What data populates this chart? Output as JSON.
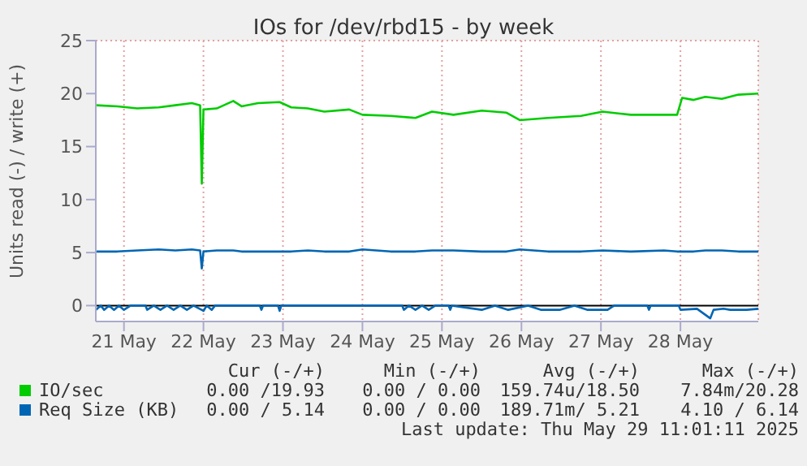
{
  "chart_data": {
    "type": "line",
    "title": "IOs for /dev/rbd15 - by week",
    "ylabel": "Units read (-) / write (+)",
    "x": [
      "2025-05-21T03:30",
      "2025-05-21T10:00",
      "2025-05-21T16:00",
      "2025-05-21T22:30",
      "2025-05-22T03:30",
      "2025-05-22T08:30",
      "2025-05-22T11:00",
      "2025-05-22T11:30",
      "2025-05-22T12:00",
      "2025-05-22T16:00",
      "2025-05-22T21:00",
      "2025-05-22T23:30",
      "2025-05-23T04:30",
      "2025-05-23T11:00",
      "2025-05-23T14:30",
      "2025-05-23T19:30",
      "2025-05-24T00:30",
      "2025-05-24T08:00",
      "2025-05-24T12:00",
      "2025-05-24T20:30",
      "2025-05-25T04:00",
      "2025-05-25T09:00",
      "2025-05-25T15:30",
      "2025-05-26T00:00",
      "2025-05-26T07:30",
      "2025-05-26T11:30",
      "2025-05-26T20:00",
      "2025-05-27T06:00",
      "2025-05-27T12:30",
      "2025-05-27T21:00",
      "2025-05-28T07:00",
      "2025-05-28T11:00",
      "2025-05-28T12:30",
      "2025-05-28T16:00",
      "2025-05-28T19:30",
      "2025-05-29T00:30",
      "2025-05-29T05:30",
      "2025-05-29T11:30"
    ],
    "series": [
      {
        "name": "IO/sec",
        "color": "#00cc00",
        "values": [
          18.9,
          18.8,
          18.6,
          18.7,
          18.9,
          19.1,
          18.9,
          11.5,
          18.5,
          18.6,
          19.3,
          18.8,
          19.1,
          19.2,
          18.7,
          18.6,
          18.3,
          18.5,
          18.0,
          17.9,
          17.7,
          18.3,
          18.0,
          18.4,
          18.2,
          17.5,
          17.7,
          17.9,
          18.3,
          18.0,
          18.0,
          18.0,
          19.6,
          19.4,
          19.7,
          19.5,
          19.9,
          20.0
        ]
      },
      {
        "name": "Req Size (KB)",
        "color": "#0066b3",
        "values": [
          5.1,
          5.1,
          5.2,
          5.3,
          5.2,
          5.3,
          5.2,
          3.5,
          5.1,
          5.2,
          5.2,
          5.1,
          5.1,
          5.1,
          5.1,
          5.2,
          5.1,
          5.1,
          5.3,
          5.1,
          5.1,
          5.2,
          5.2,
          5.1,
          5.1,
          5.3,
          5.1,
          5.1,
          5.2,
          5.1,
          5.2,
          5.1,
          5.1,
          5.1,
          5.2,
          5.2,
          5.1,
          5.1
        ]
      },
      {
        "color": "#0066b3",
        "x": [
          "2025-05-21T03:30",
          "2025-05-21T05:00",
          "2025-05-21T06:00",
          "2025-05-21T07:30",
          "2025-05-21T09:00",
          "2025-05-21T10:30",
          "2025-05-21T12:00",
          "2025-05-21T14:00",
          "2025-05-21T18:30",
          "2025-05-21T19:00",
          "2025-05-21T21:00",
          "2025-05-21T23:00",
          "2025-05-22T01:00",
          "2025-05-22T03:00",
          "2025-05-22T05:00",
          "2025-05-22T07:00",
          "2025-05-22T09:00",
          "2025-05-22T12:00",
          "2025-05-22T13:00",
          "2025-05-22T14:30",
          "2025-05-22T15:30",
          "2025-05-23T05:00",
          "2025-05-23T05:30",
          "2025-05-23T06:00",
          "2025-05-23T10:30",
          "2025-05-23T11:00",
          "2025-05-23T11:30",
          "2025-05-25T00:00",
          "2025-05-25T00:30",
          "2025-05-25T02:00",
          "2025-05-25T04:00",
          "2025-05-25T06:00",
          "2025-05-25T08:00",
          "2025-05-25T10:00",
          "2025-05-25T14:00",
          "2025-05-25T14:30",
          "2025-05-25T15:00",
          "2025-05-26T00:00",
          "2025-05-26T04:00",
          "2025-05-26T08:00",
          "2025-05-26T14:00",
          "2025-05-26T18:00",
          "2025-05-26T23:30",
          "2025-05-27T04:00",
          "2025-05-27T08:00",
          "2025-05-27T14:00",
          "2025-05-27T16:00",
          "2025-05-28T02:00",
          "2025-05-28T02:30",
          "2025-05-28T03:00",
          "2025-05-28T11:30",
          "2025-05-28T12:00",
          "2025-05-28T17:00",
          "2025-05-28T21:00",
          "2025-05-28T22:00",
          "2025-05-29T01:00",
          "2025-05-29T03:00",
          "2025-05-29T08:00",
          "2025-05-29T11:30"
        ],
        "values": [
          -0.4,
          0,
          -0.4,
          0,
          -0.4,
          0,
          -0.4,
          0,
          0,
          -0.4,
          0,
          -0.4,
          0,
          -0.4,
          0,
          -0.4,
          0,
          -0.5,
          0,
          -0.4,
          0,
          0,
          -0.4,
          0,
          0,
          -0.5,
          0,
          0,
          -0.4,
          0,
          -0.4,
          0,
          -0.4,
          0,
          0,
          -0.4,
          0,
          -0.4,
          0,
          -0.4,
          0,
          -0.4,
          -0.4,
          0,
          -0.4,
          -0.4,
          0,
          0,
          -0.4,
          0,
          0,
          -0.4,
          -0.3,
          -1.2,
          -0.4,
          -0.3,
          -0.4,
          -0.4,
          -0.3
        ]
      }
    ],
    "xlim": [
      "2025-05-21T03:30",
      "2025-05-29T11:30"
    ],
    "xticks": [
      {
        "value": "2025-05-21T12:00",
        "label": "21 May"
      },
      {
        "value": "2025-05-22T12:00",
        "label": "22 May"
      },
      {
        "value": "2025-05-23T12:00",
        "label": "23 May"
      },
      {
        "value": "2025-05-24T12:00",
        "label": "24 May"
      },
      {
        "value": "2025-05-25T12:00",
        "label": "25 May"
      },
      {
        "value": "2025-05-26T12:00",
        "label": "26 May"
      },
      {
        "value": "2025-05-27T12:00",
        "label": "27 May"
      },
      {
        "value": "2025-05-28T12:00",
        "label": "28 May"
      }
    ],
    "ylim": [
      -1.5,
      25
    ],
    "yticks": [
      0,
      5,
      10,
      15,
      20,
      25
    ],
    "grid": true,
    "legend": "bottom",
    "marker": "none",
    "line_style": "solid",
    "ref_lines": [
      {
        "axis": "y",
        "value": 0,
        "color": "#000000"
      }
    ],
    "annotations": [
      "Cur (-/+)",
      "Min (-/+)",
      "Avg (-/+)",
      "Max (-/+)",
      "0.00 /19.93",
      "0.00 / 0.00",
      "159.74u/18.50",
      "7.84m/20.28",
      "0.00 / 5.14",
      "0.00 / 0.00",
      "189.71m/ 5.21",
      "4.10 / 6.14",
      "Last update: Thu May 29 11:01:11 2025"
    ]
  }
}
